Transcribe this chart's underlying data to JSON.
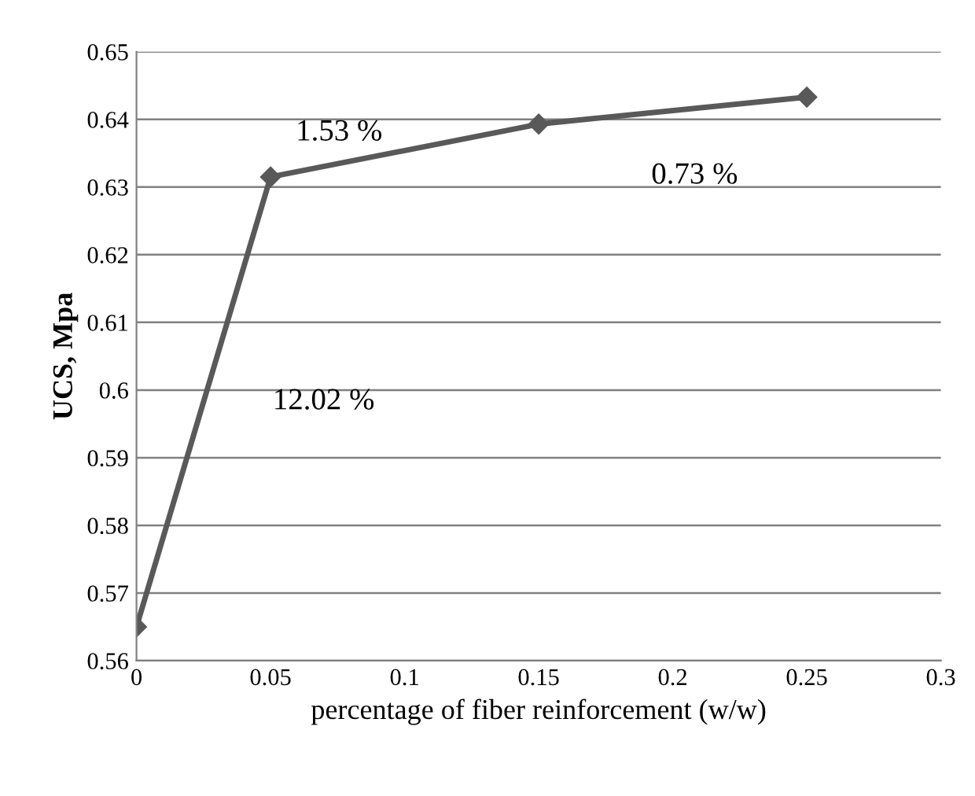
{
  "chart_data": {
    "type": "line",
    "xlabel": "percentage of fiber reinforcement (w/w)",
    "ylabel": "UCS, Mpa",
    "x": [
      0,
      0.05,
      0.15,
      0.25
    ],
    "series": [
      {
        "color": "#595959",
        "values": [
          0.565,
          0.6315,
          0.6393,
          0.6433
        ]
      }
    ],
    "xlim": [
      0,
      0.3
    ],
    "xticks": [
      0,
      0.05,
      0.1,
      0.15,
      0.2,
      0.25,
      0.3
    ],
    "ylim": [
      0.56,
      0.65
    ],
    "yticks": [
      0.56,
      0.57,
      0.58,
      0.59,
      0.6,
      0.61,
      0.62,
      0.63,
      0.64,
      0.65
    ],
    "grid": "y",
    "marker": "diamond",
    "line_style": "solid",
    "legend": false,
    "annotations": [
      "12.02 %",
      "1.53 %",
      "0.73 %"
    ]
  }
}
